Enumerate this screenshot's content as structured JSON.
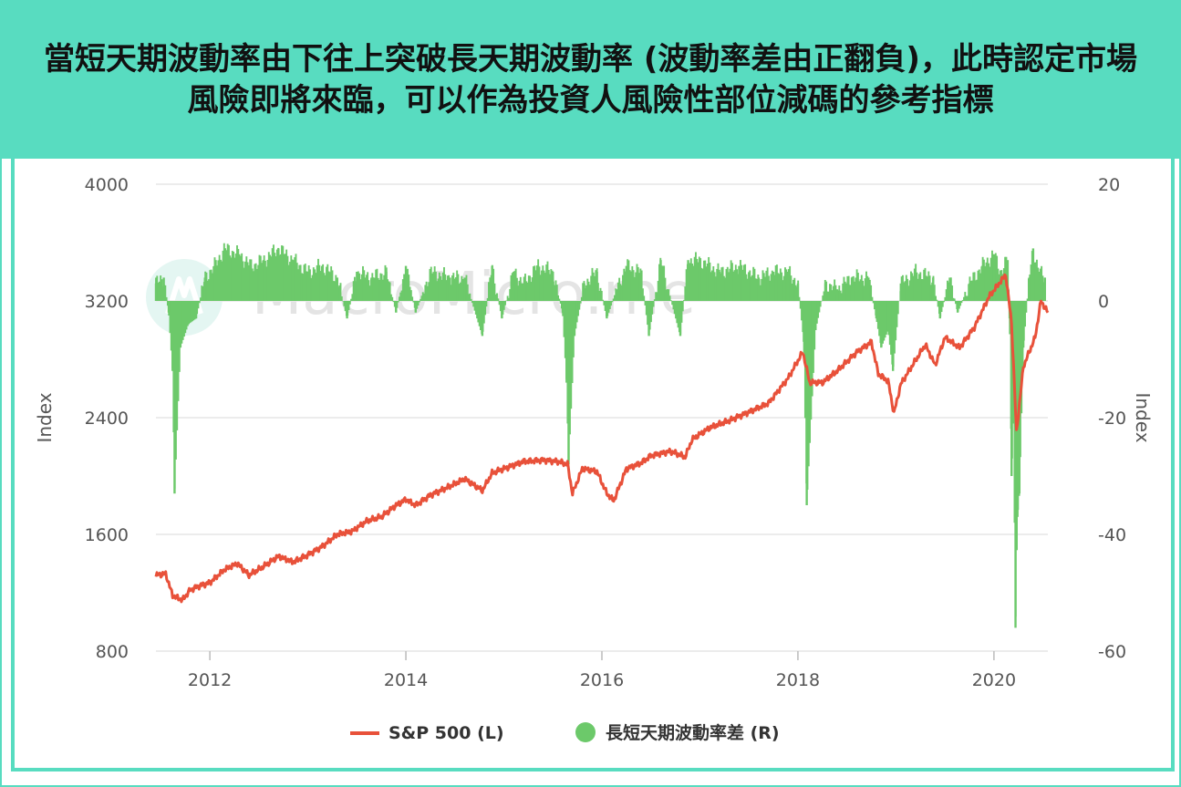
{
  "banner": {
    "title": "當短天期波動率由下往上突破長天期波動率 (波動率差由正翻負)，此時認定市場風險即將來臨，可以作為投資人風險性部位減碼的參考指標"
  },
  "watermark": "MacroMicro.me",
  "colors": {
    "banner_bg": "#58dcc0",
    "sp500_line": "#e8513a",
    "spread_bar": "#6cc96a",
    "grid": "#e6e6e6"
  },
  "chart_data": {
    "type": "line",
    "x_range": [
      2011.45,
      2020.55
    ],
    "x_ticks": [
      "2012",
      "2014",
      "2016",
      "2018",
      "2020"
    ],
    "left_axis": {
      "title": "Index",
      "range": [
        800,
        4000
      ],
      "ticks": [
        "4000",
        "3200",
        "2400",
        "1600",
        "800"
      ]
    },
    "right_axis": {
      "title": "Index",
      "range": [
        -60,
        20
      ],
      "ticks": [
        "20",
        "0",
        "-20",
        "-40",
        "-60"
      ]
    },
    "series": [
      {
        "name": "S&P 500 (L)",
        "axis": "left",
        "type": "line",
        "color": "#e8513a",
        "points": [
          [
            2011.45,
            1320
          ],
          [
            2011.55,
            1330
          ],
          [
            2011.62,
            1180
          ],
          [
            2011.72,
            1150
          ],
          [
            2011.8,
            1220
          ],
          [
            2011.9,
            1250
          ],
          [
            2012.0,
            1270
          ],
          [
            2012.15,
            1360
          ],
          [
            2012.28,
            1400
          ],
          [
            2012.4,
            1320
          ],
          [
            2012.55,
            1380
          ],
          [
            2012.7,
            1450
          ],
          [
            2012.85,
            1410
          ],
          [
            2013.0,
            1460
          ],
          [
            2013.15,
            1520
          ],
          [
            2013.3,
            1600
          ],
          [
            2013.45,
            1620
          ],
          [
            2013.6,
            1690
          ],
          [
            2013.75,
            1720
          ],
          [
            2013.9,
            1800
          ],
          [
            2014.0,
            1840
          ],
          [
            2014.1,
            1800
          ],
          [
            2014.25,
            1870
          ],
          [
            2014.45,
            1930
          ],
          [
            2014.6,
            1980
          ],
          [
            2014.78,
            1900
          ],
          [
            2014.88,
            2020
          ],
          [
            2015.0,
            2050
          ],
          [
            2015.2,
            2100
          ],
          [
            2015.4,
            2110
          ],
          [
            2015.55,
            2100
          ],
          [
            2015.65,
            2080
          ],
          [
            2015.7,
            1880
          ],
          [
            2015.8,
            2050
          ],
          [
            2015.95,
            2030
          ],
          [
            2016.05,
            1880
          ],
          [
            2016.12,
            1830
          ],
          [
            2016.25,
            2050
          ],
          [
            2016.4,
            2090
          ],
          [
            2016.5,
            2140
          ],
          [
            2016.7,
            2170
          ],
          [
            2016.85,
            2130
          ],
          [
            2016.92,
            2250
          ],
          [
            2017.1,
            2330
          ],
          [
            2017.3,
            2380
          ],
          [
            2017.5,
            2440
          ],
          [
            2017.7,
            2500
          ],
          [
            2017.9,
            2670
          ],
          [
            2018.05,
            2850
          ],
          [
            2018.12,
            2640
          ],
          [
            2018.25,
            2640
          ],
          [
            2018.4,
            2720
          ],
          [
            2018.6,
            2850
          ],
          [
            2018.75,
            2920
          ],
          [
            2018.82,
            2700
          ],
          [
            2018.92,
            2650
          ],
          [
            2018.98,
            2430
          ],
          [
            2019.05,
            2630
          ],
          [
            2019.3,
            2900
          ],
          [
            2019.4,
            2760
          ],
          [
            2019.5,
            2950
          ],
          [
            2019.65,
            2880
          ],
          [
            2019.8,
            3020
          ],
          [
            2019.95,
            3230
          ],
          [
            2020.12,
            3380
          ],
          [
            2020.18,
            3050
          ],
          [
            2020.23,
            2300
          ],
          [
            2020.3,
            2750
          ],
          [
            2020.42,
            2950
          ],
          [
            2020.48,
            3200
          ],
          [
            2020.55,
            3120
          ]
        ]
      },
      {
        "name": "長短天期波動率差 (R)",
        "axis": "right",
        "type": "bar",
        "color": "#6cc96a",
        "points": [
          [
            2011.45,
            3
          ],
          [
            2011.53,
            4
          ],
          [
            2011.58,
            -2
          ],
          [
            2011.62,
            -12
          ],
          [
            2011.64,
            -33
          ],
          [
            2011.7,
            -8
          ],
          [
            2011.78,
            -4
          ],
          [
            2011.86,
            -3
          ],
          [
            2011.95,
            4
          ],
          [
            2012.05,
            6
          ],
          [
            2012.15,
            9
          ],
          [
            2012.3,
            8
          ],
          [
            2012.42,
            6
          ],
          [
            2012.55,
            7
          ],
          [
            2012.7,
            9
          ],
          [
            2012.85,
            7
          ],
          [
            2013.0,
            5
          ],
          [
            2013.15,
            6
          ],
          [
            2013.3,
            4
          ],
          [
            2013.4,
            -3
          ],
          [
            2013.5,
            5
          ],
          [
            2013.65,
            4
          ],
          [
            2013.8,
            5
          ],
          [
            2013.9,
            -2
          ],
          [
            2014.0,
            6
          ],
          [
            2014.1,
            -2
          ],
          [
            2014.25,
            5
          ],
          [
            2014.45,
            4
          ],
          [
            2014.6,
            4
          ],
          [
            2014.78,
            -6
          ],
          [
            2014.88,
            6
          ],
          [
            2014.98,
            -3
          ],
          [
            2015.1,
            5
          ],
          [
            2015.2,
            3
          ],
          [
            2015.35,
            6
          ],
          [
            2015.5,
            5
          ],
          [
            2015.6,
            -2
          ],
          [
            2015.64,
            -14
          ],
          [
            2015.66,
            -28
          ],
          [
            2015.72,
            -6
          ],
          [
            2015.82,
            3
          ],
          [
            2015.95,
            5
          ],
          [
            2016.05,
            -3
          ],
          [
            2016.15,
            2
          ],
          [
            2016.25,
            6
          ],
          [
            2016.4,
            5
          ],
          [
            2016.48,
            -6
          ],
          [
            2016.6,
            7
          ],
          [
            2016.8,
            -6
          ],
          [
            2016.88,
            7
          ],
          [
            2017.0,
            7
          ],
          [
            2017.2,
            5
          ],
          [
            2017.4,
            6
          ],
          [
            2017.6,
            4
          ],
          [
            2017.75,
            5
          ],
          [
            2017.9,
            5
          ],
          [
            2018.0,
            3
          ],
          [
            2018.06,
            -7
          ],
          [
            2018.09,
            -35
          ],
          [
            2018.18,
            -5
          ],
          [
            2018.28,
            3
          ],
          [
            2018.4,
            2
          ],
          [
            2018.55,
            4
          ],
          [
            2018.72,
            4
          ],
          [
            2018.8,
            -3
          ],
          [
            2018.85,
            -8
          ],
          [
            2018.92,
            -5
          ],
          [
            2018.97,
            -12
          ],
          [
            2019.05,
            3
          ],
          [
            2019.2,
            5
          ],
          [
            2019.38,
            4
          ],
          [
            2019.45,
            -3
          ],
          [
            2019.55,
            4
          ],
          [
            2019.63,
            -2
          ],
          [
            2019.75,
            3
          ],
          [
            2019.88,
            6
          ],
          [
            2020.0,
            8
          ],
          [
            2020.07,
            5
          ],
          [
            2020.14,
            7
          ],
          [
            2020.16,
            -3
          ],
          [
            2020.18,
            -30
          ],
          [
            2020.2,
            -20
          ],
          [
            2020.22,
            -56
          ],
          [
            2020.24,
            -37
          ],
          [
            2020.26,
            -33
          ],
          [
            2020.3,
            -8
          ],
          [
            2020.36,
            4
          ],
          [
            2020.4,
            9
          ],
          [
            2020.46,
            5
          ],
          [
            2020.52,
            4
          ]
        ]
      }
    ],
    "legend": {
      "position": "bottom",
      "items": [
        "S&P 500 (L)",
        "長短天期波動率差 (R)"
      ]
    },
    "grid": true
  }
}
